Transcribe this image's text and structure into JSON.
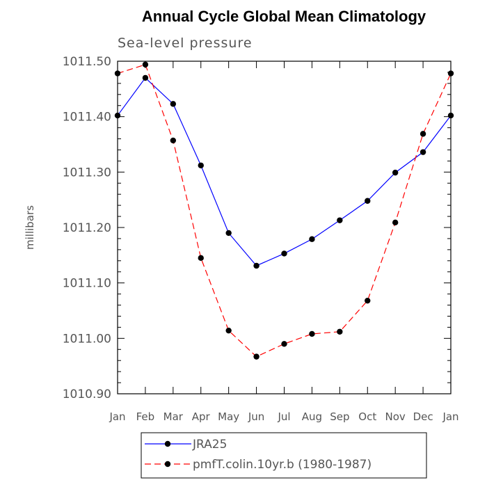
{
  "chart_data": {
    "type": "line",
    "title": "Annual Cycle Global Mean Climatology",
    "subtitle": "Sea-level pressure",
    "xlabel": "",
    "ylabel": "millibars",
    "categories": [
      "Jan",
      "Feb",
      "Mar",
      "Apr",
      "May",
      "Jun",
      "Jul",
      "Aug",
      "Sep",
      "Oct",
      "Nov",
      "Dec",
      "Jan"
    ],
    "ylim": [
      1010.9,
      1011.5
    ],
    "yticks": [
      "1010.90",
      "1011.00",
      "1011.10",
      "1011.20",
      "1011.30",
      "1011.40",
      "1011.50"
    ],
    "series": [
      {
        "name": "JRA25",
        "color": "#0000ff",
        "dash": "solid",
        "values": [
          1011.402,
          1011.47,
          1011.423,
          1011.312,
          1011.19,
          1011.131,
          1011.153,
          1011.179,
          1011.213,
          1011.248,
          1011.299,
          1011.336,
          1011.402
        ]
      },
      {
        "name": "pmfT.colin.10yr.b (1980-1987)",
        "color": "#ff0000",
        "dash": "dashed",
        "values": [
          1011.478,
          1011.494,
          1011.357,
          1011.145,
          1011.014,
          1010.967,
          1010.99,
          1011.008,
          1011.012,
          1011.068,
          1011.209,
          1011.369,
          1011.478
        ]
      }
    ],
    "legend_position": "bottom"
  }
}
